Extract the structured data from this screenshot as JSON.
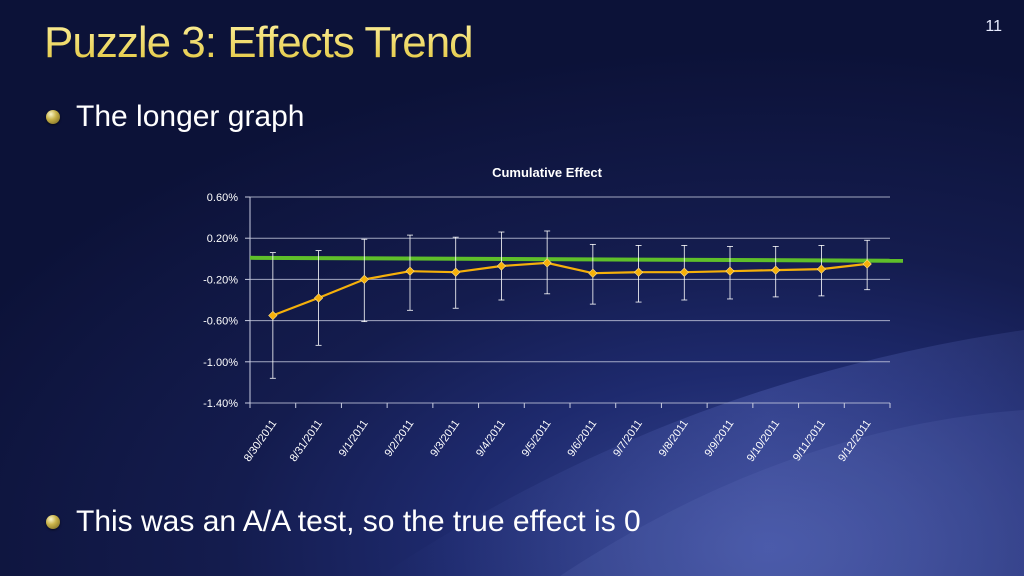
{
  "slide": {
    "title": "Puzzle 3: Effects Trend",
    "number": "11",
    "bullets": [
      "The longer graph",
      "This was an A/A test, so the true effect is 0"
    ]
  },
  "colors": {
    "title": "#f2e27a",
    "series_line": "#f5b00a",
    "reference_line": "#5fbf2a",
    "error_bars": "#ffffff",
    "grid": "#c8cce0"
  },
  "chart_data": {
    "type": "line",
    "title": "Cumulative Effect",
    "xlabel": "",
    "ylabel": "",
    "categories": [
      "8/30/2011",
      "8/31/2011",
      "9/1/2011",
      "9/2/2011",
      "9/3/2011",
      "9/4/2011",
      "9/5/2011",
      "9/6/2011",
      "9/7/2011",
      "9/8/2011",
      "9/9/2011",
      "9/10/2011",
      "9/11/2011",
      "9/12/2011"
    ],
    "ylim": [
      -1.4,
      0.6
    ],
    "yticks": [
      0.6,
      0.2,
      -0.2,
      -0.6,
      -1.0,
      -1.4
    ],
    "ytick_labels": [
      "0.60%",
      "0.20%",
      "-0.20%",
      "-0.60%",
      "-1.00%",
      "-1.40%"
    ],
    "grid": true,
    "legend": "none",
    "series": [
      {
        "values": [
          -0.55,
          -0.38,
          -0.2,
          -0.12,
          -0.13,
          -0.07,
          -0.04,
          -0.14,
          -0.13,
          -0.13,
          -0.12,
          -0.11,
          -0.1,
          -0.05
        ],
        "error_low": [
          -1.16,
          -0.84,
          -0.61,
          -0.5,
          -0.48,
          -0.4,
          -0.34,
          -0.44,
          -0.42,
          -0.4,
          -0.39,
          -0.37,
          -0.36,
          -0.3
        ],
        "error_high": [
          0.06,
          0.08,
          0.19,
          0.23,
          0.21,
          0.26,
          0.27,
          0.14,
          0.13,
          0.13,
          0.12,
          0.12,
          0.13,
          0.18
        ]
      }
    ],
    "reference_line": {
      "y": 0.0
    }
  }
}
